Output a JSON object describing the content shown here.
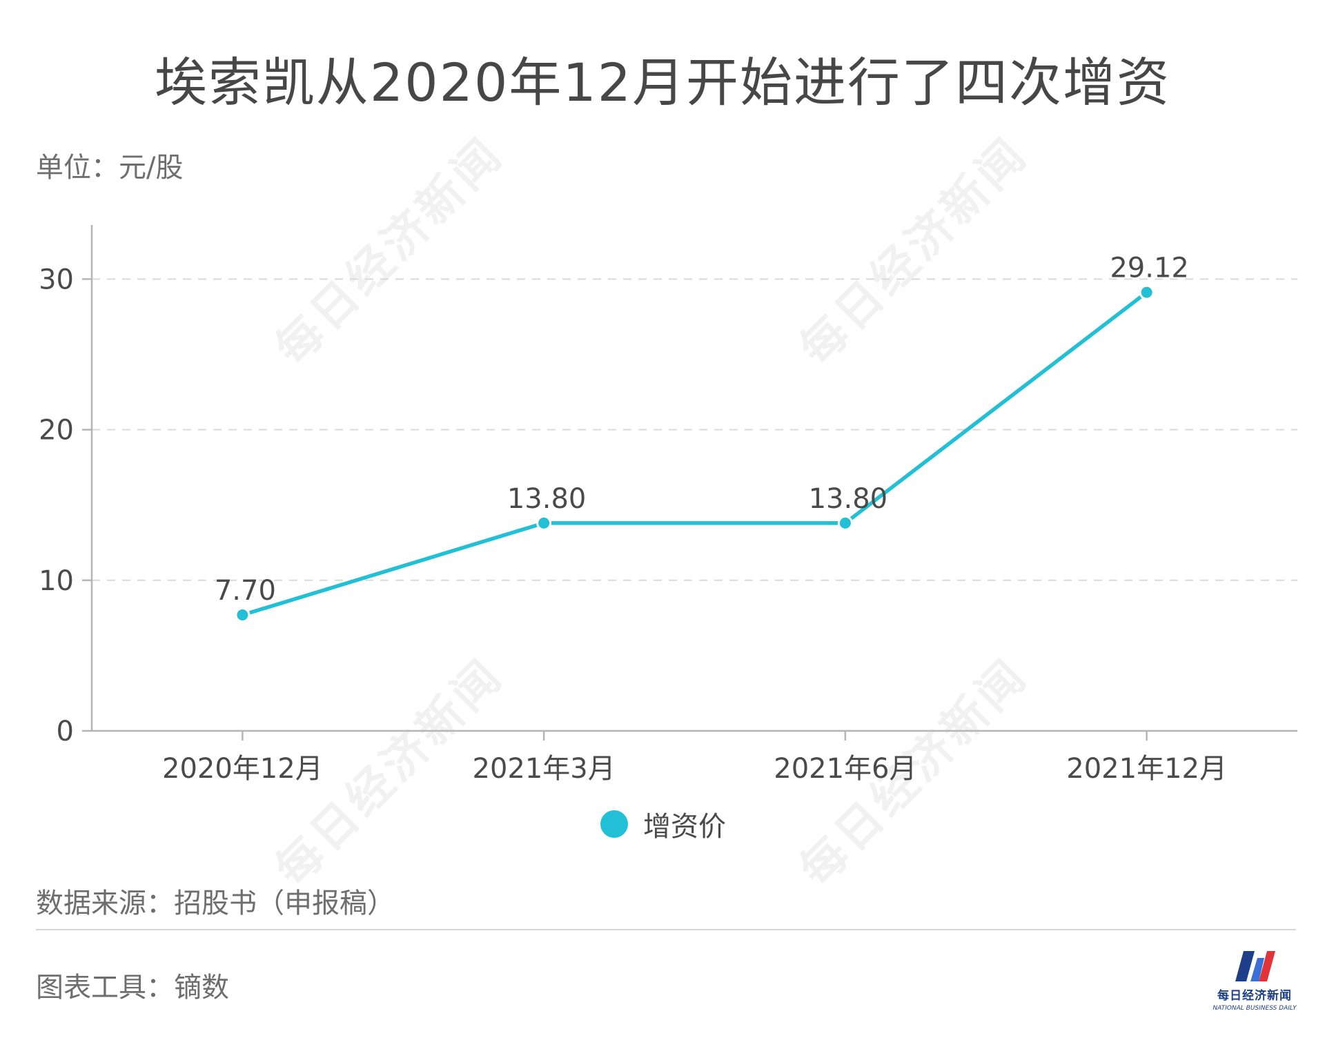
{
  "title": "埃索凯从2020年12月开始进行了四次增资",
  "unit_label": "单位：元/股",
  "source_label": "数据来源：招股书（申报稿）",
  "tool_label": "图表工具：镝数",
  "watermark_text": "每日经济新闻",
  "logo": {
    "cn": "每日经济新闻",
    "en": "NATIONAL BUSINESS DAILY"
  },
  "colors": {
    "series": "#22c0d6",
    "axis": "#b5b5b5",
    "grid": "#d9d9d9",
    "text": "#4a4a4a",
    "logo_blue": "#1d3f8a",
    "logo_red": "#e0343a"
  },
  "chart_data": {
    "type": "line",
    "categories": [
      "2020年12月",
      "2021年3月",
      "2021年6月",
      "2021年12月"
    ],
    "series": [
      {
        "name": "增资价",
        "values": [
          7.7,
          13.8,
          13.8,
          29.12
        ],
        "labels": [
          "7.70",
          "13.80",
          "13.80",
          "29.12"
        ]
      }
    ],
    "ylim": [
      0,
      33.5
    ],
    "yticks": [
      0,
      10,
      20,
      30
    ],
    "grid": "horizontal dashed",
    "legend_position": "bottom"
  }
}
